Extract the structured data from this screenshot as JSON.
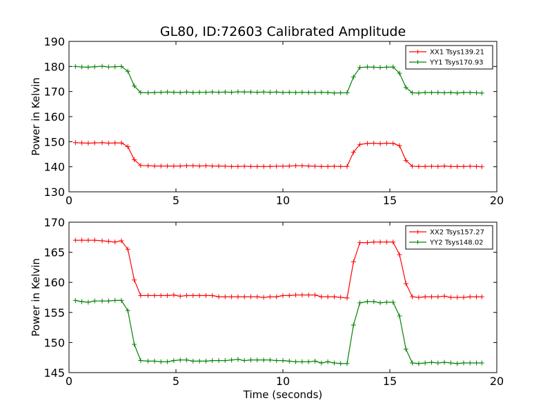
{
  "chart_data": [
    {
      "type": "line",
      "title": "GL80, ID:72603 Calibrated Amplitude",
      "xlabel": "",
      "ylabel": "Power in Kelvin",
      "xlim": [
        0,
        20
      ],
      "ylim": [
        130,
        190
      ],
      "xticks": [
        "0",
        "5",
        "10",
        "15",
        "20"
      ],
      "yticks": [
        "130",
        "140",
        "150",
        "160",
        "170",
        "180",
        "190"
      ],
      "legend_position": "top-right",
      "grid": false,
      "x": [
        0.3,
        0.6,
        0.9,
        1.2,
        1.55,
        1.85,
        2.15,
        2.45,
        2.75,
        3.05,
        3.35,
        3.7,
        4.0,
        4.3,
        4.6,
        4.9,
        5.2,
        5.5,
        5.8,
        6.1,
        6.4,
        6.7,
        7.0,
        7.3,
        7.6,
        7.9,
        8.2,
        8.5,
        8.8,
        9.1,
        9.4,
        9.7,
        10.0,
        10.3,
        10.6,
        10.9,
        11.2,
        11.5,
        11.8,
        12.1,
        12.4,
        12.7,
        13.0,
        13.3,
        13.6,
        13.95,
        14.25,
        14.55,
        14.85,
        15.15,
        15.45,
        15.75,
        16.05,
        16.35,
        16.65,
        16.95,
        17.25,
        17.55,
        17.85,
        18.15,
        18.45,
        18.75,
        19.05,
        19.3
      ],
      "series": [
        {
          "name": "XX1 Tsys139.21",
          "color": "#ff0000",
          "values": [
            149.6,
            149.5,
            149.4,
            149.5,
            149.6,
            149.4,
            149.5,
            149.5,
            148.0,
            142.8,
            140.5,
            140.4,
            140.3,
            140.3,
            140.3,
            140.3,
            140.3,
            140.4,
            140.4,
            140.3,
            140.4,
            140.3,
            140.3,
            140.2,
            140.1,
            140.1,
            140.2,
            140.1,
            140.1,
            140.1,
            140.1,
            140.2,
            140.2,
            140.3,
            140.4,
            140.4,
            140.3,
            140.2,
            140.1,
            140.1,
            140.2,
            140.1,
            140.1,
            145.8,
            148.9,
            149.3,
            149.4,
            149.2,
            149.4,
            149.3,
            148.4,
            142.5,
            140.2,
            140.1,
            140.1,
            140.2,
            140.1,
            140.3,
            140.1,
            140.1,
            140.1,
            140.2,
            140.1,
            140.0
          ]
        },
        {
          "name": "YY1 Tsys170.93",
          "color": "#008000",
          "values": [
            180.0,
            179.8,
            179.7,
            179.9,
            180.1,
            179.8,
            179.9,
            180.0,
            178.1,
            172.2,
            169.6,
            169.5,
            169.6,
            169.7,
            169.8,
            169.7,
            169.6,
            169.8,
            169.6,
            169.7,
            169.7,
            169.8,
            169.7,
            169.8,
            169.7,
            169.9,
            169.8,
            169.8,
            169.7,
            169.8,
            169.7,
            169.8,
            169.6,
            169.7,
            169.6,
            169.7,
            169.6,
            169.6,
            169.7,
            169.6,
            169.4,
            169.5,
            169.5,
            175.8,
            179.6,
            179.8,
            179.7,
            179.6,
            179.7,
            179.8,
            177.3,
            171.6,
            169.5,
            169.4,
            169.6,
            169.6,
            169.6,
            169.5,
            169.6,
            169.4,
            169.6,
            169.6,
            169.5,
            169.4
          ]
        }
      ]
    },
    {
      "type": "line",
      "title": "",
      "xlabel": "Time (seconds)",
      "ylabel": "Power in Kelvin",
      "xlim": [
        0,
        20
      ],
      "ylim": [
        145,
        170
      ],
      "xticks": [
        "0",
        "5",
        "10",
        "15",
        "20"
      ],
      "yticks": [
        "145",
        "150",
        "155",
        "160",
        "165",
        "170"
      ],
      "legend_position": "top-right",
      "grid": false,
      "x": [
        0.3,
        0.6,
        0.9,
        1.2,
        1.55,
        1.85,
        2.15,
        2.45,
        2.75,
        3.05,
        3.35,
        3.7,
        4.0,
        4.3,
        4.6,
        4.9,
        5.2,
        5.5,
        5.8,
        6.1,
        6.4,
        6.7,
        7.0,
        7.3,
        7.6,
        7.9,
        8.2,
        8.5,
        8.8,
        9.1,
        9.4,
        9.7,
        10.0,
        10.3,
        10.6,
        10.9,
        11.2,
        11.5,
        11.8,
        12.1,
        12.4,
        12.7,
        13.0,
        13.3,
        13.6,
        13.95,
        14.25,
        14.55,
        14.85,
        15.15,
        15.45,
        15.75,
        16.05,
        16.35,
        16.65,
        16.95,
        17.25,
        17.55,
        17.85,
        18.15,
        18.45,
        18.75,
        19.05,
        19.3
      ],
      "series": [
        {
          "name": "XX2 Tsys157.27",
          "color": "#ff0000",
          "values": [
            167.0,
            167.0,
            167.0,
            167.0,
            166.9,
            166.8,
            166.7,
            166.9,
            165.5,
            160.4,
            157.8,
            157.8,
            157.8,
            157.8,
            157.8,
            157.9,
            157.7,
            157.8,
            157.8,
            157.8,
            157.8,
            157.8,
            157.6,
            157.6,
            157.6,
            157.6,
            157.6,
            157.6,
            157.6,
            157.5,
            157.6,
            157.6,
            157.8,
            157.8,
            157.9,
            157.9,
            157.9,
            157.9,
            157.6,
            157.6,
            157.6,
            157.5,
            157.4,
            163.4,
            166.6,
            166.6,
            166.7,
            166.7,
            166.7,
            166.7,
            164.6,
            159.8,
            157.6,
            157.5,
            157.6,
            157.6,
            157.6,
            157.7,
            157.5,
            157.5,
            157.5,
            157.6,
            157.6,
            157.6
          ]
        },
        {
          "name": "YY2 Tsys148.02",
          "color": "#008000",
          "values": [
            157.0,
            156.8,
            156.7,
            156.9,
            156.9,
            156.9,
            157.0,
            157.0,
            155.3,
            149.7,
            147.0,
            146.9,
            146.9,
            146.8,
            146.8,
            147.0,
            147.1,
            147.1,
            146.9,
            146.9,
            146.9,
            147.0,
            147.0,
            147.0,
            147.1,
            147.2,
            147.0,
            147.1,
            147.1,
            147.1,
            147.1,
            147.0,
            147.0,
            146.9,
            146.8,
            146.8,
            146.8,
            146.9,
            146.6,
            146.8,
            146.6,
            146.5,
            146.5,
            152.9,
            156.6,
            156.8,
            156.8,
            156.6,
            156.7,
            156.7,
            154.4,
            148.9,
            146.6,
            146.5,
            146.6,
            146.7,
            146.6,
            146.7,
            146.6,
            146.5,
            146.6,
            146.6,
            146.6,
            146.6
          ]
        }
      ]
    }
  ]
}
